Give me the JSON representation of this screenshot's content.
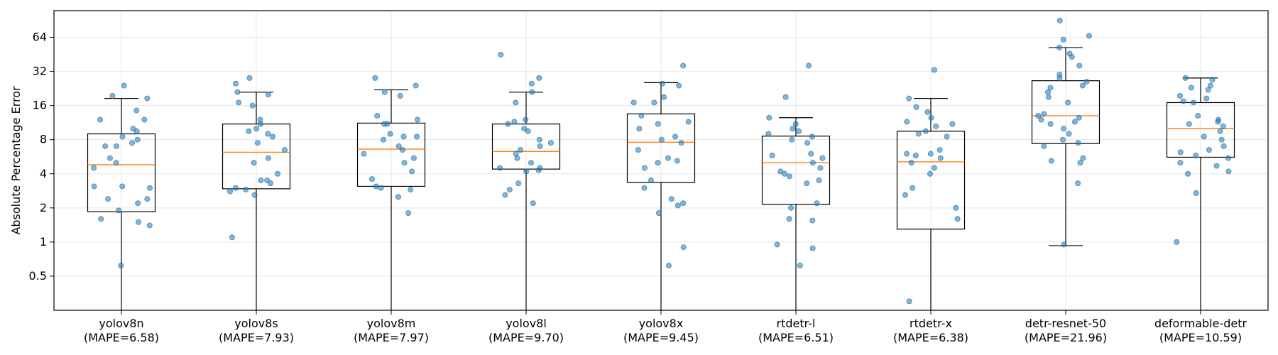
{
  "chart_data": {
    "type": "box",
    "ylabel": "Absolute Percentage Error",
    "yscale": "log2",
    "ylim": [
      0.25,
      110
    ],
    "yticks": [
      0.5,
      1,
      2,
      4,
      8,
      16,
      32,
      64
    ],
    "ytick_labels": [
      "0.5",
      "1",
      "2",
      "4",
      "8",
      "16",
      "32",
      "64"
    ],
    "grid": true,
    "colors": {
      "box": "#000000",
      "median": "#ff7f0e",
      "points": "#1f77b4"
    },
    "boxes": [
      {
        "name": "yolov8n",
        "mape_label": "(MAPE=6.58)",
        "q1": 1.85,
        "median": 4.8,
        "q3": 9.0,
        "whisker_low": 0.25,
        "whisker_high": 18.5,
        "points": [
          24,
          19.5,
          18.5,
          14.5,
          12,
          12,
          10,
          9.5,
          8.5,
          8,
          7.5,
          7,
          7,
          5.5,
          5,
          4.5,
          3.1,
          3.1,
          3,
          2.4,
          2.4,
          2.2,
          1.9,
          1.6,
          1.5,
          1.4,
          0.62
        ]
      },
      {
        "name": "yolov8s",
        "mape_label": "(MAPE=7.93)",
        "q1": 2.95,
        "median": 6.2,
        "q3": 11.0,
        "whisker_low": 0.25,
        "whisker_high": 21.0,
        "points": [
          28,
          25,
          21,
          20,
          17,
          16,
          12,
          11,
          10,
          9.5,
          9,
          8.5,
          7.5,
          6.5,
          5.5,
          5,
          4,
          3.5,
          3.5,
          3.3,
          3,
          2.9,
          2.8,
          2.6,
          1.1
        ]
      },
      {
        "name": "yolov8m",
        "mape_label": "(MAPE=7.97)",
        "q1": 3.1,
        "median": 6.6,
        "q3": 11.2,
        "whisker_low": 0.25,
        "whisker_high": 22.0,
        "points": [
          28,
          24,
          21,
          19.5,
          13,
          12,
          11,
          11,
          9,
          8.5,
          8.5,
          8,
          7,
          6.5,
          6,
          5.5,
          5,
          4.2,
          3.6,
          3.1,
          3,
          2.9,
          2.5,
          1.8
        ]
      },
      {
        "name": "yolov8l",
        "mape_label": "(MAPE=9.70)",
        "q1": 4.4,
        "median": 6.3,
        "q3": 11.0,
        "whisker_low": 0.25,
        "whisker_high": 21.0,
        "points": [
          45,
          28,
          25,
          21,
          17,
          12,
          11.5,
          11,
          10,
          9.5,
          8,
          7.5,
          7,
          6.5,
          6,
          5.5,
          5,
          4.5,
          4.5,
          4.3,
          4.2,
          3.3,
          2.9,
          2.6,
          2.2
        ]
      },
      {
        "name": "yolov8x",
        "mape_label": "(MAPE=9.45)",
        "q1": 3.35,
        "median": 7.6,
        "q3": 13.5,
        "whisker_low": 0.25,
        "whisker_high": 25.5,
        "points": [
          36,
          25,
          24,
          19,
          17,
          17,
          13,
          11.5,
          11,
          10,
          8.5,
          8,
          7.5,
          6.5,
          5.5,
          5.2,
          5,
          4.5,
          3.5,
          3,
          2.4,
          2.2,
          2.1,
          1.8,
          0.9,
          0.62
        ]
      },
      {
        "name": "rtdetr-l",
        "mape_label": "(MAPE=6.51)",
        "q1": 2.15,
        "median": 5.0,
        "q3": 8.6,
        "whisker_low": 0.25,
        "whisker_high": 12.5,
        "points": [
          36,
          19,
          12.5,
          11,
          10,
          9.5,
          9,
          8.5,
          8,
          7.5,
          6,
          5.8,
          5.5,
          5,
          4.5,
          4.2,
          4,
          3.8,
          3.5,
          3.3,
          2.2,
          2,
          1.6,
          1.55,
          0.95,
          0.88,
          0.62
        ]
      },
      {
        "name": "rtdetr-x",
        "mape_label": "(MAPE=6.38)",
        "q1": 1.3,
        "median": 5.1,
        "q3": 9.5,
        "whisker_low": 0.25,
        "whisker_high": 18.5,
        "points": [
          33,
          18.5,
          15.5,
          14,
          12.5,
          11.5,
          11,
          10.5,
          9.5,
          9,
          8.5,
          6.5,
          6,
          6,
          5.8,
          5.5,
          5,
          4.5,
          4,
          3,
          2.6,
          2,
          1.6,
          0.3
        ]
      },
      {
        "name": "detr-resnet-50",
        "mape_label": "(MAPE=21.96)",
        "q1": 7.4,
        "median": 13.0,
        "q3": 26.5,
        "whisker_low": 0.93,
        "whisker_high": 52.0,
        "points": [
          90,
          66,
          61,
          52,
          46,
          43,
          36,
          30,
          28,
          26,
          24,
          23,
          21,
          19,
          17,
          13.5,
          13,
          12.5,
          12,
          11.5,
          11,
          10,
          9,
          8,
          7.5,
          7,
          5.5,
          5.2,
          5,
          3.3,
          0.95
        ]
      },
      {
        "name": "deformable-detr",
        "mape_label": "(MAPE=10.59)",
        "q1": 5.6,
        "median": 10.0,
        "q3": 17.0,
        "whisker_low": 0.25,
        "whisker_high": 28.0,
        "points": [
          28,
          27,
          24,
          23,
          22,
          19.5,
          18.5,
          17.5,
          17,
          13,
          12,
          11.5,
          11,
          10.5,
          9.5,
          8.5,
          8,
          7,
          6.5,
          6.2,
          5.8,
          5.5,
          5,
          4.7,
          4.2,
          4,
          2.7,
          1.0
        ]
      }
    ]
  }
}
